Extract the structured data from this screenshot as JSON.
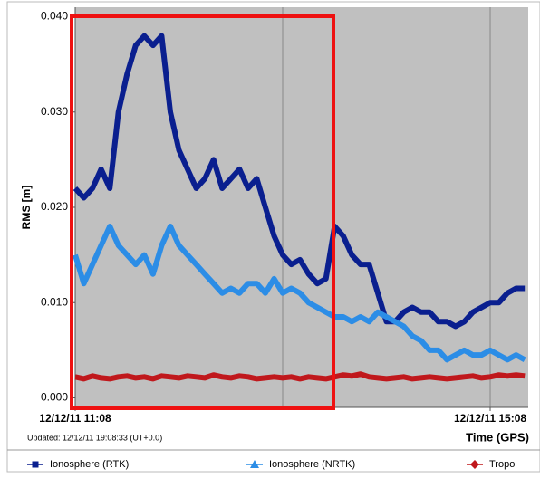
{
  "chart_data": {
    "type": "line",
    "y_label": "RMS [m]",
    "x_label": "Time (GPS)",
    "updated": "Updated: 12/12/11 19:08:33 (UT+0.0)",
    "x": [
      0,
      5,
      10,
      15,
      20,
      25,
      30,
      35,
      40,
      45,
      50,
      55,
      60,
      65,
      70,
      75,
      80,
      85,
      90,
      95,
      100,
      105,
      110,
      115,
      120,
      125,
      130,
      135,
      140,
      145,
      150,
      155,
      160,
      165,
      170,
      175,
      180,
      185,
      190,
      195,
      200,
      205,
      210,
      215,
      220,
      225,
      230,
      235,
      240,
      245,
      250,
      255,
      260
    ],
    "xlim": [
      0,
      262
    ],
    "xticks": [
      {
        "value": 0,
        "label": "12/12/11 11:08"
      },
      {
        "value": 240,
        "label": "12/12/11 15:08"
      }
    ],
    "x_gridlines": [
      0,
      120,
      240
    ],
    "ylim": [
      -0.001,
      0.041
    ],
    "yticks": [
      {
        "value": 0,
        "label": "0.000"
      },
      {
        "value": 0.01,
        "label": "0.010"
      },
      {
        "value": 0.02,
        "label": "0.020"
      },
      {
        "value": 0.03,
        "label": "0.030"
      },
      {
        "value": 0.04,
        "label": "0.040"
      }
    ],
    "background": "#c0c0c0",
    "series": [
      {
        "name": "Ionosphere (RTK)",
        "color": "#0a1f8f",
        "marker": "square",
        "values": [
          0.022,
          0.021,
          0.022,
          0.024,
          0.022,
          0.03,
          0.034,
          0.037,
          0.038,
          0.037,
          0.038,
          0.03,
          0.026,
          0.024,
          0.022,
          0.023,
          0.025,
          0.022,
          0.023,
          0.024,
          0.022,
          0.023,
          0.02,
          0.017,
          0.015,
          0.014,
          0.0145,
          0.013,
          0.012,
          0.0125,
          0.018,
          0.017,
          0.015,
          0.014,
          0.014,
          0.011,
          0.008,
          0.008,
          0.009,
          0.0095,
          0.009,
          0.009,
          0.008,
          0.008,
          0.0075,
          0.008,
          0.009,
          0.0095,
          0.01,
          0.01,
          0.011,
          0.0115,
          0.0115
        ]
      },
      {
        "name": "Ionosphere (NRTK)",
        "color": "#2c8de6",
        "marker": "triangle",
        "values": [
          0.015,
          0.012,
          0.014,
          0.016,
          0.018,
          0.016,
          0.015,
          0.014,
          0.015,
          0.013,
          0.016,
          0.018,
          0.016,
          0.015,
          0.014,
          0.013,
          0.012,
          0.011,
          0.0115,
          0.011,
          0.012,
          0.012,
          0.011,
          0.0125,
          0.011,
          0.0115,
          0.011,
          0.01,
          0.0095,
          0.009,
          0.0085,
          0.0085,
          0.008,
          0.0085,
          0.008,
          0.009,
          0.0085,
          0.008,
          0.0075,
          0.0065,
          0.006,
          0.005,
          0.005,
          0.004,
          0.0045,
          0.005,
          0.0045,
          0.0045,
          0.005,
          0.0045,
          0.004,
          0.0045,
          0.004
        ]
      },
      {
        "name": "Tropo",
        "color": "#c0181c",
        "marker": "diamond",
        "values": [
          0.0022,
          0.002,
          0.0023,
          0.0021,
          0.002,
          0.0022,
          0.0023,
          0.0021,
          0.0022,
          0.002,
          0.0023,
          0.0022,
          0.0021,
          0.0023,
          0.0022,
          0.0021,
          0.0024,
          0.0022,
          0.0021,
          0.0023,
          0.0022,
          0.002,
          0.0021,
          0.0022,
          0.0021,
          0.0022,
          0.002,
          0.0022,
          0.0021,
          0.002,
          0.0022,
          0.0024,
          0.0023,
          0.0025,
          0.0022,
          0.0021,
          0.002,
          0.0021,
          0.0022,
          0.002,
          0.0021,
          0.0022,
          0.0021,
          0.002,
          0.0021,
          0.0022,
          0.0023,
          0.0021,
          0.0022,
          0.0024,
          0.0023,
          0.0024,
          0.0023
        ]
      }
    ]
  }
}
